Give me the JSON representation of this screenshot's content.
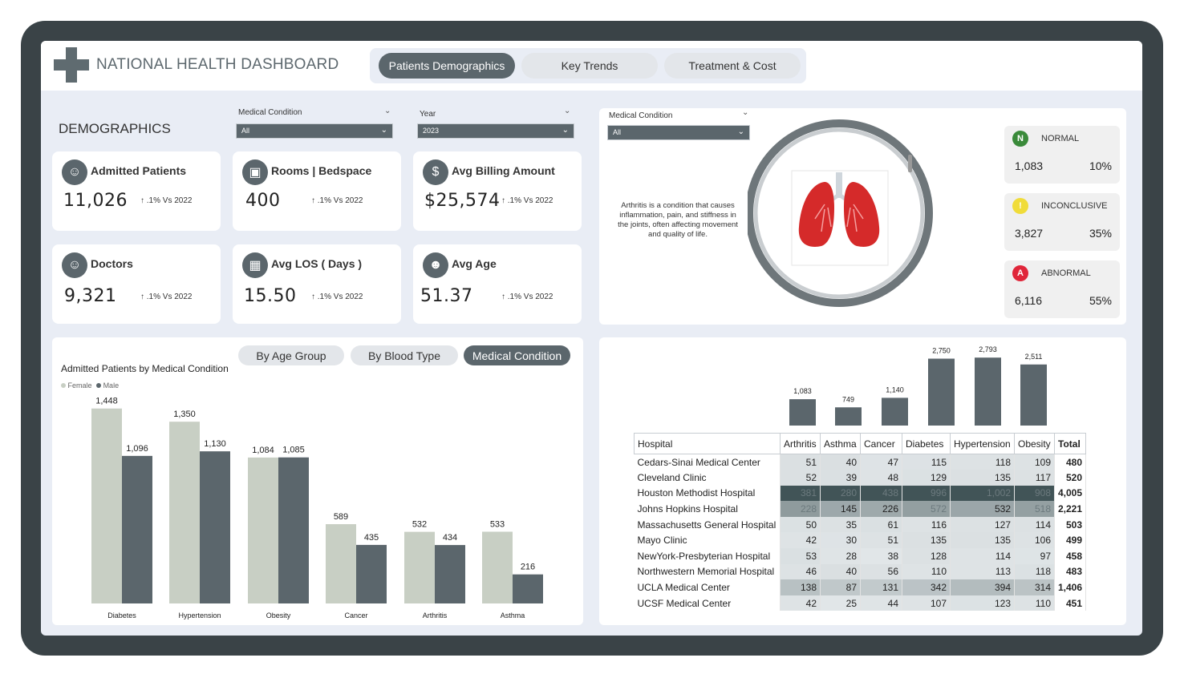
{
  "header": {
    "title": "NATIONAL HEALTH DASHBOARD",
    "nav": [
      "Patients Demographics",
      "Key Trends",
      "Treatment & Cost"
    ],
    "active_nav": "Patients Demographics"
  },
  "demographics": {
    "title": "DEMOGRAPHICS",
    "slicers": [
      {
        "label": "Medical Condition",
        "value": "All"
      },
      {
        "label": "Year",
        "value": "2023"
      }
    ],
    "kpis": [
      {
        "label": "Admitted Patients",
        "value": "11,026",
        "delta": "↑ .1% Vs 2022",
        "icon": "patient-icon"
      },
      {
        "label": "Rooms | Bedspace",
        "value": "400",
        "delta": "↑ .1% Vs 2022",
        "icon": "bed-icon"
      },
      {
        "label": "Avg Billing Amount",
        "value": "$25,574",
        "delta": "↑ .1% Vs 2022",
        "icon": "money-bag-icon"
      },
      {
        "label": "Doctors",
        "value": "9,321",
        "delta": "↑ .1% Vs 2022",
        "icon": "doctor-icon"
      },
      {
        "label": "Avg LOS ( Days )",
        "value": "15.50",
        "delta": "↑ .1% Vs 2022",
        "icon": "calendar-icon"
      },
      {
        "label": "Avg Age",
        "value": "51.37",
        "delta": "↑ .1% Vs 2022",
        "icon": "people-icon"
      }
    ]
  },
  "condition_panel": {
    "slicer": {
      "label": "Medical Condition",
      "value": "All"
    },
    "description": "Arthritis is a condition that causes inflammation, pain, and stiffness in the joints, often affecting movement and quality of life.",
    "image_icon": "lungs-icon",
    "statuses": [
      {
        "badge": "N",
        "label": "NORMAL",
        "value": "1,083",
        "pct": "10%",
        "color": "#3a8a3a"
      },
      {
        "badge": "!",
        "label": "INCONCLUSIVE",
        "value": "3,827",
        "pct": "35%",
        "color": "#f0dc3a"
      },
      {
        "badge": "A",
        "label": "ABNORMAL",
        "value": "6,116",
        "pct": "55%",
        "color": "#e0263a"
      }
    ]
  },
  "left_chart": {
    "tabs": [
      "By Age Group",
      "By Blood Type",
      "Medical Condition"
    ],
    "active_tab": "Medical Condition"
  },
  "chart_data": [
    {
      "type": "bar",
      "title": "Admitted Patients by Medical Condition",
      "categories": [
        "Diabetes",
        "Hypertension",
        "Obesity",
        "Cancer",
        "Arthritis",
        "Asthma"
      ],
      "series": [
        {
          "name": "Female",
          "values": [
            1448,
            1350,
            1084,
            589,
            532,
            533
          ],
          "color": "#c8cfc4"
        },
        {
          "name": "Male",
          "values": [
            1096,
            1130,
            1085,
            435,
            434,
            216
          ],
          "color": "#5b666c"
        }
      ],
      "value_labels": [
        [
          "1,448",
          "1,350",
          "1,084",
          "589",
          "532",
          "533"
        ],
        [
          "1,096",
          "1,130",
          "1,085",
          "435",
          "434",
          "216"
        ]
      ],
      "legend": "top-left",
      "ylim": [
        0,
        1500
      ]
    },
    {
      "type": "bar",
      "categories": [
        "Arthritis",
        "Asthma",
        "Cancer",
        "Diabetes",
        "Hypertension",
        "Obesity"
      ],
      "values": [
        1083,
        749,
        1140,
        2750,
        2793,
        2511
      ],
      "value_labels": [
        "1,083",
        "749",
        "1,140",
        "2,750",
        "2,793",
        "2,511"
      ],
      "ylim": [
        0,
        2800
      ]
    },
    {
      "type": "table",
      "columns": [
        "Hospital",
        "Arthritis",
        "Asthma",
        "Cancer",
        "Diabetes",
        "Hypertension",
        "Obesity",
        "Total"
      ],
      "rows": [
        [
          "Cedars-Sinai Medical Center",
          "51",
          "40",
          "47",
          "115",
          "118",
          "109",
          "480"
        ],
        [
          "Cleveland Clinic",
          "52",
          "39",
          "48",
          "129",
          "135",
          "117",
          "520"
        ],
        [
          "Houston Methodist Hospital",
          "381",
          "280",
          "438",
          "996",
          "1,002",
          "908",
          "4,005"
        ],
        [
          "Johns Hopkins Hospital",
          "228",
          "145",
          "226",
          "572",
          "532",
          "518",
          "2,221"
        ],
        [
          "Massachusetts General Hospital",
          "50",
          "35",
          "61",
          "116",
          "127",
          "114",
          "503"
        ],
        [
          "Mayo Clinic",
          "42",
          "30",
          "51",
          "135",
          "135",
          "106",
          "499"
        ],
        [
          "NewYork-Presbyterian Hospital",
          "53",
          "28",
          "38",
          "128",
          "114",
          "97",
          "458"
        ],
        [
          "Northwestern Memorial Hospital",
          "46",
          "40",
          "56",
          "110",
          "113",
          "118",
          "483"
        ],
        [
          "UCLA Medical Center",
          "138",
          "87",
          "131",
          "342",
          "394",
          "314",
          "1,406"
        ],
        [
          "UCSF Medical Center",
          "42",
          "25",
          "44",
          "107",
          "123",
          "110",
          "451"
        ]
      ]
    }
  ]
}
